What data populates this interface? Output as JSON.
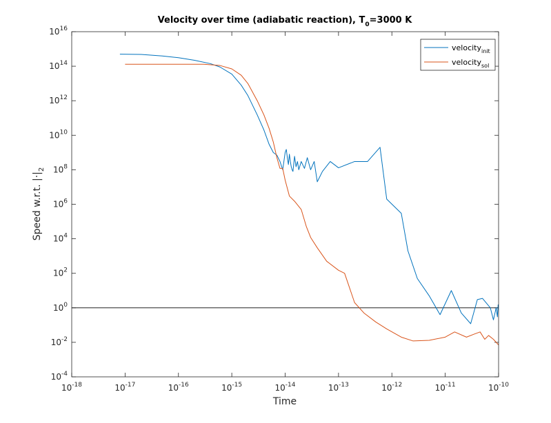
{
  "chart_data": {
    "type": "line",
    "title": {
      "main": "Velocity over time (adiabatic reaction), T",
      "sub": "0",
      "suffix": "=3000 K"
    },
    "xlabel": "Time",
    "ylabel": {
      "main": "Speed w.r.t. |·|",
      "sub": "2"
    },
    "xscale": "log",
    "yscale": "log",
    "xlim": [
      1e-18,
      1e-10
    ],
    "ylim": [
      0.0001,
      1e+16
    ],
    "x_ticks": [
      {
        "value": 1e-18,
        "base": "10",
        "exp": "-18"
      },
      {
        "value": 1e-17,
        "base": "10",
        "exp": "-17"
      },
      {
        "value": 1e-16,
        "base": "10",
        "exp": "-16"
      },
      {
        "value": 1e-15,
        "base": "10",
        "exp": "-15"
      },
      {
        "value": 1e-14,
        "base": "10",
        "exp": "-14"
      },
      {
        "value": 1e-13,
        "base": "10",
        "exp": "-13"
      },
      {
        "value": 1e-12,
        "base": "10",
        "exp": "-12"
      },
      {
        "value": 1e-11,
        "base": "10",
        "exp": "-11"
      },
      {
        "value": 1e-10,
        "base": "10",
        "exp": "-10"
      }
    ],
    "y_ticks": [
      {
        "value": 0.0001,
        "base": "10",
        "exp": "-4"
      },
      {
        "value": 0.01,
        "base": "10",
        "exp": "-2"
      },
      {
        "value": 1.0,
        "base": "10",
        "exp": "0"
      },
      {
        "value": 100.0,
        "base": "10",
        "exp": "2"
      },
      {
        "value": 10000.0,
        "base": "10",
        "exp": "4"
      },
      {
        "value": 1000000.0,
        "base": "10",
        "exp": "6"
      },
      {
        "value": 100000000.0,
        "base": "10",
        "exp": "8"
      },
      {
        "value": 10000000000.0,
        "base": "10",
        "exp": "10"
      },
      {
        "value": 1000000000000.0,
        "base": "10",
        "exp": "12"
      },
      {
        "value": 100000000000000.0,
        "base": "10",
        "exp": "14"
      },
      {
        "value": 1e+16,
        "base": "10",
        "exp": "16"
      }
    ],
    "grid": false,
    "legend_position": "top-right",
    "reference_line": {
      "y": 1,
      "color": "#000000"
    },
    "series": [
      {
        "name": "velocity",
        "name_sub": "init",
        "color": "#0072BD",
        "x": [
          8e-18,
          2e-17,
          5e-17,
          1e-16,
          2e-16,
          4e-16,
          6e-16,
          1e-15,
          1.5e-15,
          2e-15,
          3e-15,
          4e-15,
          5e-15,
          6e-15,
          7e-15,
          8e-15,
          9e-15,
          1e-14,
          1.05e-14,
          1.1e-14,
          1.15e-14,
          1.2e-14,
          1.25e-14,
          1.3e-14,
          1.35e-14,
          1.4e-14,
          1.5e-14,
          1.6e-14,
          1.7e-14,
          1.8e-14,
          2e-14,
          2.3e-14,
          2.6e-14,
          3e-14,
          3.5e-14,
          4e-14,
          5e-14,
          7e-14,
          1e-13,
          2e-13,
          3.5e-13,
          6e-13,
          8e-13,
          1.5e-12,
          2e-12,
          3e-12,
          5e-12,
          8e-12,
          1.3e-11,
          2e-11,
          3e-11,
          4e-11,
          5e-11,
          7e-11,
          8e-11,
          9e-11,
          9.5e-11,
          9.8e-11,
          1e-10
        ],
        "y": [
          500000000000000.0,
          480000000000000.0,
          390000000000000.0,
          310000000000000.0,
          220000000000000.0,
          140000000000000.0,
          90000000000000.0,
          35000000000000.0,
          8000000000000.0,
          2000000000000.0,
          150000000000.0,
          20000000000.0,
          3000000000.0,
          1000000000.0,
          700000000.0,
          300000000.0,
          100000000.0,
          1000000000.0,
          1500000000.0,
          500000000.0,
          200000000.0,
          800000000.0,
          300000000.0,
          150000000.0,
          100000000.0,
          80000000.0,
          600000000.0,
          150000000.0,
          300000000.0,
          100000000.0,
          300000000.0,
          120000000.0,
          500000000.0,
          100000000.0,
          300000000.0,
          20000000.0,
          80000000.0,
          300000000.0,
          130000000.0,
          300000000.0,
          300000000.0,
          2000000000.0,
          2000000.0,
          300000.0,
          2000.0,
          50.0,
          5.0,
          0.4,
          10.0,
          0.5,
          0.12,
          3.0,
          3.5,
          1.0,
          0.2,
          1.0,
          0.3,
          1.5,
          1.0
        ]
      },
      {
        "name": "velocity",
        "name_sub": "sol",
        "color": "#D95319",
        "x": [
          1e-17,
          3e-17,
          1e-16,
          3e-16,
          6e-16,
          1e-15,
          1.5e-15,
          2e-15,
          3e-15,
          4e-15,
          5e-15,
          6e-15,
          7e-15,
          8e-15,
          9e-15,
          1e-14,
          1.2e-14,
          1.5e-14,
          2e-14,
          2.5e-14,
          3e-14,
          4e-14,
          6e-14,
          1e-13,
          1.3e-13,
          2e-13,
          3e-13,
          5e-13,
          8e-13,
          1.5e-12,
          2.5e-12,
          5e-12,
          1e-11,
          1.5e-11,
          2.5e-11,
          3.5e-11,
          4.5e-11,
          5.5e-11,
          6.5e-11,
          8e-11,
          1e-10
        ],
        "y": [
          130000000000000.0,
          130000000000000.0,
          130000000000000.0,
          130000000000000.0,
          110000000000000.0,
          70000000000000.0,
          30000000000000.0,
          10000000000000.0,
          1000000000000.0,
          150000000000.0,
          25000000000.0,
          4000000000.0,
          500000000.0,
          120000000.0,
          120000000.0,
          25000000.0,
          3000000.0,
          1500000.0,
          500000.0,
          50000.0,
          12000.0,
          3000.0,
          500.0,
          150.0,
          100.0,
          2.0,
          0.5,
          0.15,
          0.06,
          0.02,
          0.012,
          0.013,
          0.02,
          0.04,
          0.02,
          0.03,
          0.04,
          0.015,
          0.025,
          0.015,
          0.007
        ]
      }
    ]
  }
}
